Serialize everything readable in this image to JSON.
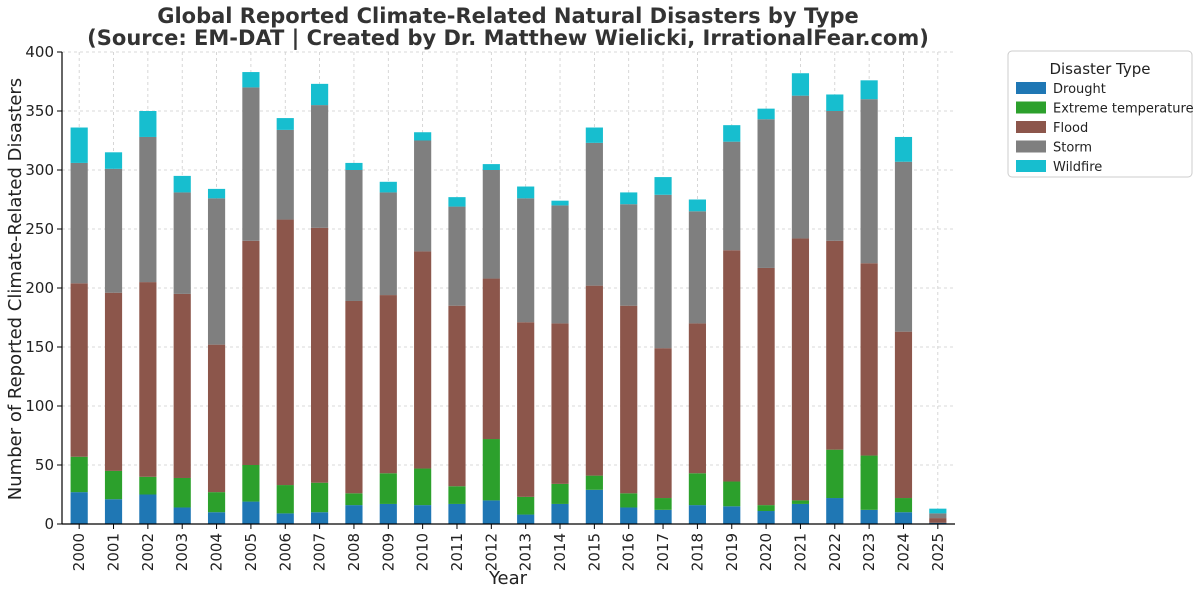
{
  "chart_data": {
    "type": "bar",
    "stacked": true,
    "title": "Global Reported Climate-Related Natural Disasters by Type",
    "subtitle": "(Source: EM-DAT | Created by Dr. Matthew Wielicki, IrrationalFear.com)",
    "xlabel": "Year",
    "ylabel": "Number of Reported Climate-Related Disasters",
    "ylim": [
      0,
      400
    ],
    "yticks": [
      0,
      50,
      100,
      150,
      200,
      250,
      300,
      350,
      400
    ],
    "grid": true,
    "legend": {
      "title": "Disaster Type",
      "placement": "outside-top-right"
    },
    "categories": [
      "2000",
      "2001",
      "2002",
      "2003",
      "2004",
      "2005",
      "2006",
      "2007",
      "2008",
      "2009",
      "2010",
      "2011",
      "2012",
      "2013",
      "2014",
      "2015",
      "2016",
      "2017",
      "2018",
      "2019",
      "2020",
      "2021",
      "2022",
      "2023",
      "2024",
      "2025"
    ],
    "series": [
      {
        "name": "Drought",
        "color": "#1f77b4",
        "values": [
          27,
          21,
          25,
          14,
          10,
          19,
          9,
          10,
          16,
          17,
          16,
          17,
          20,
          8,
          17,
          29,
          14,
          12,
          16,
          15,
          11,
          17,
          22,
          12,
          10,
          1
        ]
      },
      {
        "name": "Extreme temperature",
        "color": "#2ca02c",
        "values": [
          30,
          24,
          15,
          25,
          17,
          31,
          24,
          25,
          10,
          26,
          31,
          15,
          52,
          15,
          17,
          12,
          12,
          10,
          27,
          21,
          5,
          3,
          41,
          46,
          12,
          0
        ]
      },
      {
        "name": "Flood",
        "color": "#8c564b",
        "values": [
          147,
          151,
          165,
          156,
          125,
          190,
          225,
          216,
          163,
          151,
          184,
          153,
          136,
          148,
          136,
          161,
          159,
          127,
          127,
          196,
          201,
          222,
          177,
          163,
          141,
          4
        ]
      },
      {
        "name": "Storm",
        "color": "#7f7f7f",
        "values": [
          102,
          105,
          123,
          86,
          124,
          130,
          76,
          104,
          111,
          87,
          94,
          84,
          92,
          105,
          100,
          121,
          86,
          130,
          95,
          92,
          126,
          121,
          110,
          139,
          144,
          4
        ]
      },
      {
        "name": "Wildfire",
        "color": "#17becf",
        "values": [
          30,
          14,
          22,
          14,
          8,
          13,
          10,
          18,
          6,
          9,
          7,
          8,
          5,
          10,
          4,
          13,
          10,
          15,
          10,
          14,
          9,
          19,
          14,
          16,
          21,
          4
        ]
      }
    ]
  }
}
